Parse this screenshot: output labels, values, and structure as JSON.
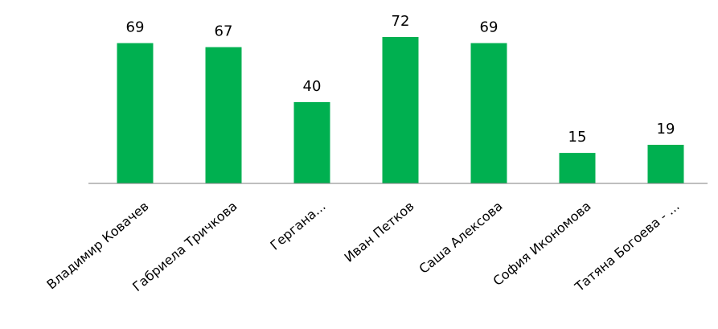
{
  "chart_data": {
    "type": "bar",
    "categories": [
      "Владимир Ковачев",
      "Габриела Тричкова",
      "Гергана...",
      "Иван Петков",
      "Саша Алексова",
      "София Икономова",
      "Татяна Богоева - ..."
    ],
    "values": [
      69,
      67,
      40,
      72,
      69,
      15,
      19
    ],
    "title": "",
    "xlabel": "",
    "ylabel": "",
    "ylim": [
      0,
      72
    ],
    "grid": false,
    "legend": "none",
    "data_labels": true,
    "colors": {
      "bar": "#00b050",
      "axis": "#7f7f7f"
    }
  }
}
